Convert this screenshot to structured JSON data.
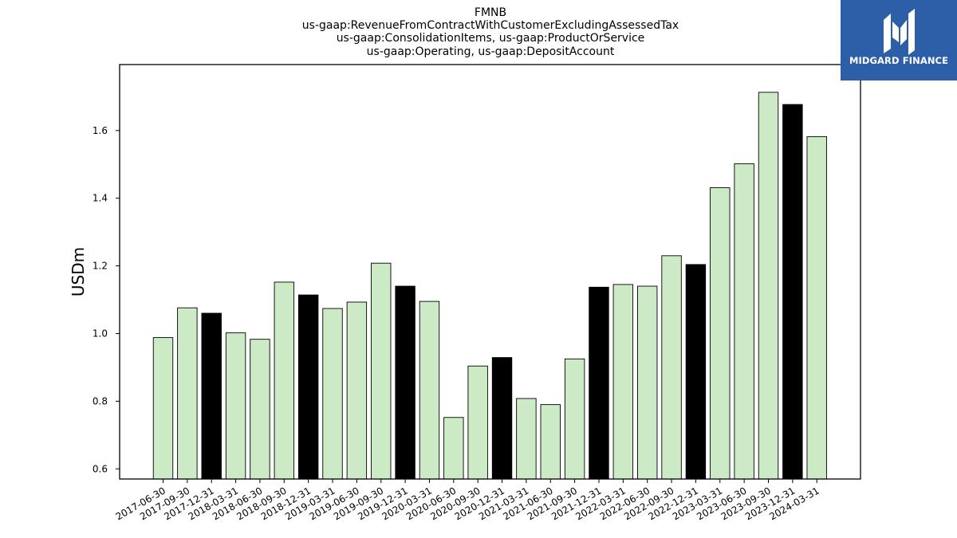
{
  "logo": {
    "text": "MIDGARD FINANCE",
    "icon": "midgard-m-icon",
    "bg_color": "#2d5fa8",
    "fg_color": "#ffffff"
  },
  "chart_data": {
    "type": "bar",
    "title_lines": [
      "FMNB",
      "us-gaap:RevenueFromContractWithCustomerExcludingAssessedTax",
      "us-gaap:ConsolidationItems, us-gaap:ProductOrService",
      "us-gaap:Operating, us-gaap:DepositAccount"
    ],
    "xlabel": "",
    "ylabel": "USDm",
    "ylim": [
      0.57,
      1.795
    ],
    "yticks": [
      0.6,
      0.8,
      1.0,
      1.2,
      1.4,
      1.6
    ],
    "ytick_labels": [
      "0.6",
      "0.8",
      "1.0",
      "1.2",
      "1.4",
      "1.6"
    ],
    "grid": false,
    "colors": {
      "regular": "#cdeac6",
      "highlight": "#000000",
      "edge": "#000000"
    },
    "categories": [
      "2017-06-30",
      "2017-09-30",
      "2017-12-31",
      "2018-03-31",
      "2018-06-30",
      "2018-09-30",
      "2018-12-31",
      "2019-03-31",
      "2019-06-30",
      "2019-09-30",
      "2019-12-31",
      "2020-03-31",
      "2020-06-30",
      "2020-09-30",
      "2020-12-31",
      "2021-03-31",
      "2021-06-30",
      "2021-09-30",
      "2021-12-31",
      "2022-03-31",
      "2022-06-30",
      "2022-09-30",
      "2022-12-31",
      "2023-03-31",
      "2023-06-30",
      "2023-09-30",
      "2023-12-31",
      "2024-03-31"
    ],
    "values": [
      0.988,
      1.076,
      1.06,
      1.002,
      0.983,
      1.152,
      1.114,
      1.074,
      1.093,
      1.208,
      1.14,
      1.095,
      0.752,
      0.904,
      0.929,
      0.808,
      0.79,
      0.925,
      1.137,
      1.145,
      1.14,
      1.23,
      1.204,
      1.431,
      1.502,
      1.713,
      1.677,
      1.582
    ],
    "highlighted": [
      false,
      false,
      true,
      false,
      false,
      false,
      true,
      false,
      false,
      false,
      true,
      false,
      false,
      false,
      true,
      false,
      false,
      false,
      true,
      false,
      false,
      false,
      true,
      false,
      false,
      false,
      true,
      false
    ]
  }
}
